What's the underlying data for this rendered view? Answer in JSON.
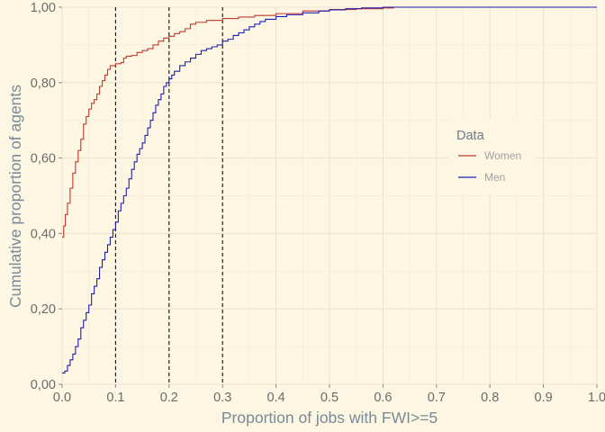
{
  "chart_data": {
    "type": "line",
    "step": true,
    "xlabel": "Proportion of jobs with FWI>=5",
    "ylabel": "Cumulative proportion of agents",
    "xlim": [
      0,
      1
    ],
    "ylim": [
      0,
      1
    ],
    "x_ticks": [
      "0.0",
      "0.1",
      "0.2",
      "0.3",
      "0.4",
      "0.5",
      "0.6",
      "0.7",
      "0.8",
      "0.9",
      "1.0"
    ],
    "y_ticks": [
      "0,00",
      "0,20",
      "0,40",
      "0,60",
      "0,80",
      "1,00"
    ],
    "grid": true,
    "reference_lines_x": [
      0.1,
      0.2,
      0.3
    ],
    "legend": {
      "title": "Data",
      "position": "right"
    },
    "series": [
      {
        "name": "Women",
        "color": "#c0392b",
        "points": [
          [
            0,
            0.39
          ],
          [
            0.003,
            0.42
          ],
          [
            0.006,
            0.45
          ],
          [
            0.01,
            0.48
          ],
          [
            0.015,
            0.52
          ],
          [
            0.02,
            0.56
          ],
          [
            0.025,
            0.59
          ],
          [
            0.03,
            0.62
          ],
          [
            0.035,
            0.65
          ],
          [
            0.04,
            0.69
          ],
          [
            0.045,
            0.71
          ],
          [
            0.05,
            0.73
          ],
          [
            0.055,
            0.745
          ],
          [
            0.06,
            0.755
          ],
          [
            0.065,
            0.77
          ],
          [
            0.07,
            0.79
          ],
          [
            0.075,
            0.805
          ],
          [
            0.08,
            0.82
          ],
          [
            0.085,
            0.835
          ],
          [
            0.09,
            0.845
          ],
          [
            0.1,
            0.85
          ],
          [
            0.11,
            0.853
          ],
          [
            0.115,
            0.865
          ],
          [
            0.12,
            0.87
          ],
          [
            0.13,
            0.872
          ],
          [
            0.14,
            0.88
          ],
          [
            0.15,
            0.885
          ],
          [
            0.16,
            0.89
          ],
          [
            0.17,
            0.9
          ],
          [
            0.18,
            0.91
          ],
          [
            0.19,
            0.918
          ],
          [
            0.2,
            0.923
          ],
          [
            0.21,
            0.93
          ],
          [
            0.22,
            0.935
          ],
          [
            0.23,
            0.943
          ],
          [
            0.24,
            0.955
          ],
          [
            0.25,
            0.96
          ],
          [
            0.27,
            0.965
          ],
          [
            0.3,
            0.97
          ],
          [
            0.33,
            0.974
          ],
          [
            0.36,
            0.978
          ],
          [
            0.4,
            0.983
          ],
          [
            0.45,
            0.99
          ],
          [
            0.5,
            0.994
          ],
          [
            0.55,
            0.996
          ],
          [
            0.6,
            0.998
          ],
          [
            0.62,
            1.0
          ],
          [
            1.0,
            1.0
          ]
        ]
      },
      {
        "name": "Men",
        "color": "#1f1fb4",
        "points": [
          [
            0,
            0.03
          ],
          [
            0.005,
            0.035
          ],
          [
            0.01,
            0.05
          ],
          [
            0.015,
            0.065
          ],
          [
            0.02,
            0.08
          ],
          [
            0.025,
            0.1
          ],
          [
            0.03,
            0.12
          ],
          [
            0.035,
            0.15
          ],
          [
            0.04,
            0.17
          ],
          [
            0.045,
            0.19
          ],
          [
            0.05,
            0.21
          ],
          [
            0.055,
            0.24
          ],
          [
            0.06,
            0.26
          ],
          [
            0.065,
            0.28
          ],
          [
            0.07,
            0.31
          ],
          [
            0.075,
            0.33
          ],
          [
            0.08,
            0.35
          ],
          [
            0.085,
            0.37
          ],
          [
            0.09,
            0.39
          ],
          [
            0.095,
            0.41
          ],
          [
            0.1,
            0.43
          ],
          [
            0.105,
            0.46
          ],
          [
            0.11,
            0.48
          ],
          [
            0.115,
            0.5
          ],
          [
            0.12,
            0.52
          ],
          [
            0.125,
            0.545
          ],
          [
            0.13,
            0.57
          ],
          [
            0.135,
            0.59
          ],
          [
            0.14,
            0.61
          ],
          [
            0.145,
            0.625
          ],
          [
            0.15,
            0.64
          ],
          [
            0.155,
            0.66
          ],
          [
            0.16,
            0.68
          ],
          [
            0.165,
            0.7
          ],
          [
            0.17,
            0.72
          ],
          [
            0.175,
            0.74
          ],
          [
            0.18,
            0.755
          ],
          [
            0.185,
            0.77
          ],
          [
            0.19,
            0.79
          ],
          [
            0.195,
            0.8
          ],
          [
            0.2,
            0.81
          ],
          [
            0.205,
            0.82
          ],
          [
            0.21,
            0.83
          ],
          [
            0.22,
            0.845
          ],
          [
            0.23,
            0.855
          ],
          [
            0.24,
            0.865
          ],
          [
            0.25,
            0.875
          ],
          [
            0.26,
            0.885
          ],
          [
            0.27,
            0.89
          ],
          [
            0.28,
            0.895
          ],
          [
            0.29,
            0.9
          ],
          [
            0.3,
            0.91
          ],
          [
            0.31,
            0.915
          ],
          [
            0.32,
            0.925
          ],
          [
            0.33,
            0.932
          ],
          [
            0.34,
            0.94
          ],
          [
            0.35,
            0.948
          ],
          [
            0.36,
            0.955
          ],
          [
            0.37,
            0.962
          ],
          [
            0.38,
            0.968
          ],
          [
            0.4,
            0.975
          ],
          [
            0.42,
            0.98
          ],
          [
            0.45,
            0.985
          ],
          [
            0.48,
            0.99
          ],
          [
            0.5,
            0.993
          ],
          [
            0.53,
            0.996
          ],
          [
            0.56,
            0.998
          ],
          [
            0.6,
            1.0
          ],
          [
            1.0,
            1.0
          ]
        ]
      }
    ]
  }
}
